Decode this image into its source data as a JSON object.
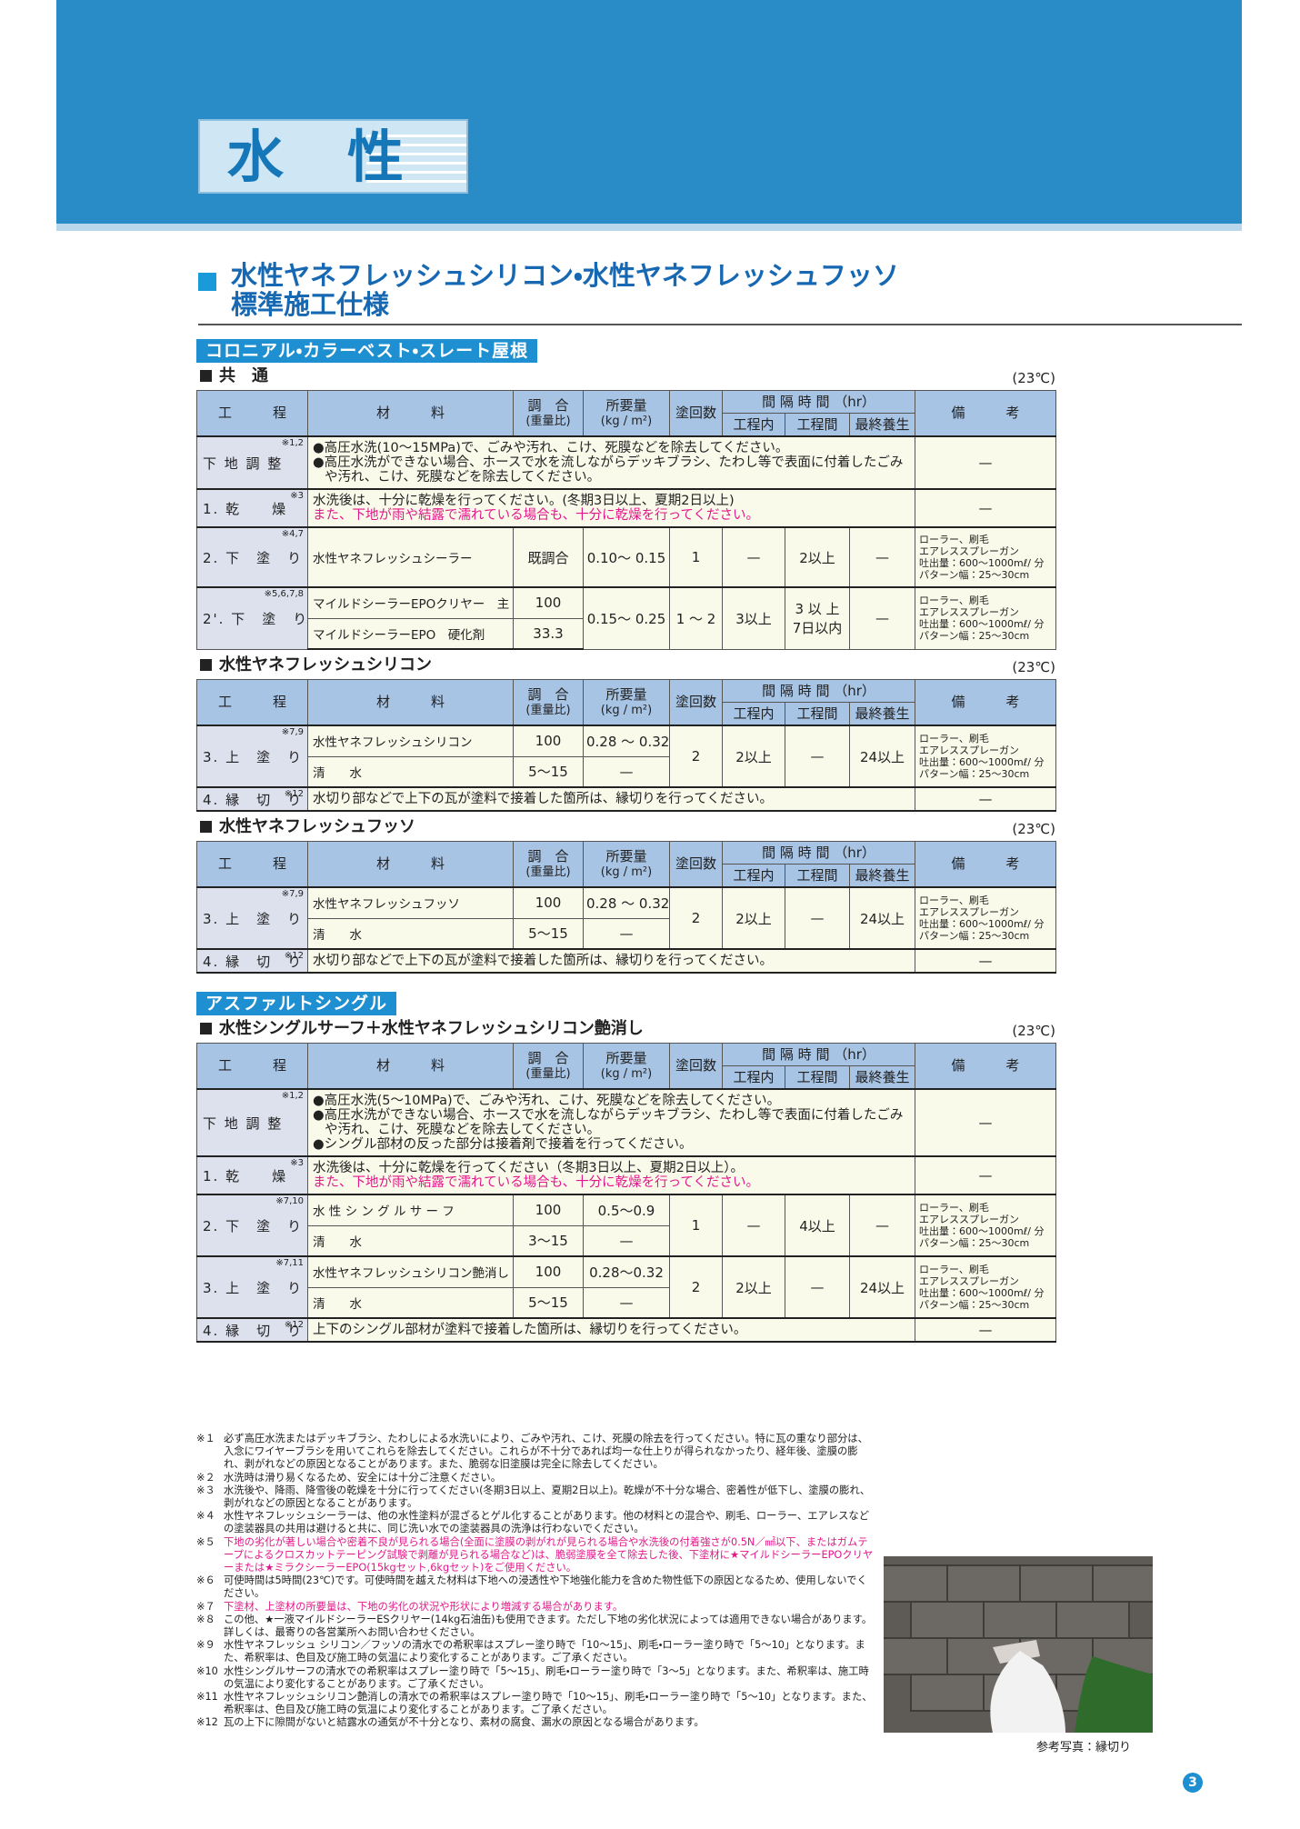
{
  "header": {
    "title": "水　性"
  },
  "heading": {
    "line1": "水性ヤネフレッシュシリコン・水性ヤネフレッシュフッソ",
    "line2": "標準施工仕様"
  },
  "col_header": {
    "step": "工　　　程",
    "material": "材　　　料",
    "mix": "調　合",
    "mix_unit": "(重量比)",
    "amount": "所要量",
    "amount_unit": "(kg / m²)",
    "coats": "塗回数",
    "interval": "間 隔 時 間 （hr）",
    "within": "工程内",
    "between": "工程間",
    "final": "最終養生",
    "remarks": "備　　　考"
  },
  "sections": [
    {
      "label": "コロニアル・カラーベスト・スレート屋根",
      "tables": [
        {
          "title": "共　通",
          "temp": "(23℃)",
          "rows": [
            {
              "note": "※1,2",
              "step": "下 地 調 整",
              "text": [
                "●高圧水洗(10～15MPa)で、ごみや汚れ、こけ、死膜などを除去してください。",
                "●高圧水洗ができない場合、ホースで水を流しながらデッキブラシ、たわし等で表面に付着したごみや汚れ、こけ、死膜などを除去してください。"
              ],
              "remarks": "—"
            },
            {
              "note": "※3",
              "step": "1. 乾　　燥",
              "text": [
                "水洗後は、十分に乾燥を行ってください。(冬期3日以上、夏期2日以上)"
              ],
              "warning": "また、下地が雨や結露で濡れている場合も、十分に乾燥を行ってください。",
              "remarks": "—"
            },
            {
              "note": "※4,7",
              "step": "2. 下　塗　り",
              "material": "水性ヤネフレッシュシーラー",
              "mix": "既調合",
              "amount": "0.10～ 0.15",
              "coats": "1",
              "within": "—",
              "between": "2以上",
              "final": "—",
              "remarks": [
                "ローラー、刷毛",
                "エアレススプレーガン",
                "吐出量：600～1000mℓ/ 分",
                "パターン幅：25～30cm"
              ]
            },
            {
              "note": "※5,6,7,8",
              "step": "2'. 下　塗　り",
              "materials": [
                {
                  "name": "マイルドシーラーEPOクリヤー　主　剤",
                  "mix": "100"
                },
                {
                  "name": "マイルドシーラーEPO　硬化剤",
                  "mix": "33.3"
                }
              ],
              "amount": "0.15～ 0.25",
              "coats": "1 ～ 2",
              "within": "3以上",
              "between": [
                "3 以 上",
                "7日以内"
              ],
              "final": "—",
              "remarks": [
                "ローラー、刷毛",
                "エアレススプレーガン",
                "吐出量：600～1000mℓ/ 分",
                "パターン幅：25～30cm"
              ]
            }
          ]
        },
        {
          "title": "水性ヤネフレッシュシリコン",
          "temp": "(23℃)",
          "rows": [
            {
              "note": "※7,9",
              "step": "3. 上　塗　り",
              "materials": [
                {
                  "name": "水性ヤネフレッシュシリコン",
                  "mix": "100",
                  "amount": "0.28 ～ 0.32"
                },
                {
                  "name": "清　　水",
                  "mix": "5～15",
                  "amount": "—"
                }
              ],
              "coats": "2",
              "within": "2以上",
              "between": "—",
              "final": "24以上",
              "remarks": [
                "ローラー、刷毛",
                "エアレススプレーガン",
                "吐出量：600～1000mℓ/ 分",
                "パターン幅：25～30cm"
              ]
            },
            {
              "note": "※12",
              "step": "4. 縁　切　り",
              "text": [
                "水切り部などで上下の瓦が塗料で接着した箇所は、縁切りを行ってください。"
              ],
              "remarks": "—"
            }
          ]
        },
        {
          "title": "水性ヤネフレッシュフッソ",
          "temp": "(23℃)",
          "rows": [
            {
              "note": "※7,9",
              "step": "3. 上　塗　り",
              "materials": [
                {
                  "name": "水性ヤネフレッシュフッソ",
                  "mix": "100",
                  "amount": "0.28 ～ 0.32"
                },
                {
                  "name": "清　　水",
                  "mix": "5～15",
                  "amount": "—"
                }
              ],
              "coats": "2",
              "within": "2以上",
              "between": "—",
              "final": "24以上",
              "remarks": [
                "ローラー、刷毛",
                "エアレススプレーガン",
                "吐出量：600～1000mℓ/ 分",
                "パターン幅：25～30cm"
              ]
            },
            {
              "note": "※12",
              "step": "4. 縁　切　り",
              "text": [
                "水切り部などで上下の瓦が塗料で接着した箇所は、縁切りを行ってください。"
              ],
              "remarks": "—"
            }
          ]
        }
      ]
    },
    {
      "label": "アスファルトシングル",
      "tables": [
        {
          "title": "水性シングルサーフ＋水性ヤネフレッシュシリコン艶消し",
          "temp": "(23℃)",
          "rows": [
            {
              "note": "※1,2",
              "step": "下 地 調 整",
              "text": [
                "●高圧水洗(5～10MPa)で、ごみや汚れ、こけ、死膜などを除去してください。",
                "●高圧水洗ができない場合、ホースで水を流しながらデッキブラシ、たわし等で表面に付着したごみや汚れ、こけ、死膜などを除去してください。",
                "●シングル部材の反った部分は接着剤で接着を行ってください。"
              ],
              "remarks": "—"
            },
            {
              "note": "※3",
              "step": "1. 乾　　燥",
              "text": [
                "水洗後は、十分に乾燥を行ってください（冬期3日以上、夏期2日以上）。"
              ],
              "warning": "また、下地が雨や結露で濡れている場合も、十分に乾燥を行ってください。",
              "remarks": "—"
            },
            {
              "note": "※7,10",
              "step": "2. 下　塗　り",
              "materials": [
                {
                  "name": "水 性 シ ン グ ル サ ー フ",
                  "mix": "100",
                  "amount": "0.5～0.9"
                },
                {
                  "name": "清　　水",
                  "mix": "3～15",
                  "amount": "—"
                }
              ],
              "coats": "1",
              "within": "—",
              "between": "4以上",
              "final": "—",
              "remarks": [
                "ローラー、刷毛",
                "エアレススプレーガン",
                "吐出量：600～1000mℓ/ 分",
                "パターン幅：25～30cm"
              ]
            },
            {
              "note": "※7,11",
              "step": "3. 上　塗　り",
              "materials": [
                {
                  "name": "水性ヤネフレッシュシリコン艶消し",
                  "mix": "100",
                  "amount": "0.28～0.32"
                },
                {
                  "name": "清　　水",
                  "mix": "5～15",
                  "amount": "—"
                }
              ],
              "coats": "2",
              "within": "2以上",
              "between": "—",
              "final": "24以上",
              "remarks": [
                "ローラー、刷毛",
                "エアレススプレーガン",
                "吐出量：600～1000mℓ/ 分",
                "パターン幅：25～30cm"
              ]
            },
            {
              "note": "※12",
              "step": "4. 縁　切　り",
              "text": [
                "上下のシングル部材が塗料で接着した箇所は、縁切りを行ってください。"
              ],
              "remarks": "—"
            }
          ]
        }
      ]
    }
  ],
  "footnotes": [
    {
      "mark": "※１",
      "text": "必ず高圧水洗またはデッキブラシ、たわしによる水洗いにより、ごみや汚れ、こけ、死膜の除去を行ってください。特に瓦の重なり部分は、入念にワイヤーブラシを用いてこれらを除去してください。これらが不十分であれば均一な仕上りが得られなかったり、経年後、塗膜の膨れ、剥がれなどの原因となることがあります。また、脆弱な旧塗膜は完全に除去してください。"
    },
    {
      "mark": "※２",
      "text": "水洗時は滑り易くなるため、安全には十分ご注意ください。"
    },
    {
      "mark": "※３",
      "text": "水洗後や、降雨、降雪後の乾燥を十分に行ってください(冬期3日以上、夏期2日以上)。乾燥が不十分な場合、密着性が低下し、塗膜の膨れ、剥がれなどの原因となることがあります。"
    },
    {
      "mark": "※４",
      "text": "水性ヤネフレッシュシーラーは、他の水性塗料が混ざるとゲル化することがあります。他の材料との混合や、刷毛、ローラー、エアレスなどの塗装器具の共用は避けると共に、同じ洗い水での塗装器具の洗浄は行わないでください。"
    },
    {
      "mark": "※５",
      "warning": "下地の劣化が著しい場合や密着不良が見られる場合(全面に塗膜の剥がれが見られる場合や水洗後の付着強さが0.5N／㎟以下、またはガムテープによるクロスカットテーピング試験で剥離が見られる場合など)は、脆弱塗膜を全て除去した後、下塗材に★マイルドシーラーEPOクリヤーまたは★ミラクシーラーEPO(15kgセット,6kgセット)をご使用ください。"
    },
    {
      "mark": "※６",
      "text": "可使時間は5時間(23℃)です。可使時間を越えた材料は下地への浸透性や下地強化能力を含めた物性低下の原因となるため、使用しないでください。"
    },
    {
      "mark": "※７",
      "warning": "下塗材、上塗材の所要量は、下地の劣化の状況や形状により増減する場合があります。"
    },
    {
      "mark": "※８",
      "text": "この他、★一液マイルドシーラーESクリヤー(14kg石油缶)も使用できます。ただし下地の劣化状況によっては適用できない場合があります。詳しくは、最寄りの各営業所へお問い合わせください。"
    },
    {
      "mark": "※９",
      "text": "水性ヤネフレッシュ シリコン／フッソの清水での希釈率はスプレー塗り時で「10～15」、刷毛・ローラー塗り時で「5～10」となります。また、希釈率は、色目及び施工時の気温により変化することがあります。ご了承ください。"
    },
    {
      "mark": "※10",
      "text": "水性シングルサーフの清水での希釈率はスプレー塗り時で「5～15」、刷毛・ローラー塗り時で「3～5」となります。また、希釈率は、施工時の気温により変化することがあります。ご了承ください。"
    },
    {
      "mark": "※11",
      "text": "水性ヤネフレッシュシリコン艶消しの清水での希釈率はスプレー塗り時で「10～15」、刷毛・ローラー塗り時で「5～10」となります。また、希釈率は、色目及び施工時の気温により変化することがあります。ご了承ください。"
    },
    {
      "mark": "※12",
      "text": "瓦の上下に隙間がないと結露水の通気が不十分となり、素材の腐食、漏水の原因となる場合があります。"
    }
  ],
  "photo": {
    "caption": "参考写真：縁切り"
  },
  "page_number": "3"
}
